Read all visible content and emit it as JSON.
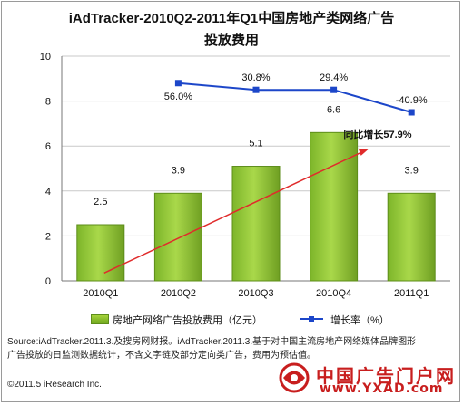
{
  "title_line1": "iAdTracker-2010Q2-2011年Q1中国房地产类网络广告",
  "title_line2": "投放费用",
  "chart_data": {
    "type": "bar",
    "categories": [
      "2010Q1",
      "2010Q2",
      "2010Q3",
      "2010Q4",
      "2011Q1"
    ],
    "ylim": [
      0,
      10
    ],
    "yticks": [
      0,
      2,
      4,
      6,
      8,
      10
    ],
    "grid": true,
    "series": [
      {
        "name": "房地产网络广告投放费用（亿元）",
        "type": "bar",
        "values": [
          2.5,
          3.9,
          5.1,
          6.6,
          3.9
        ],
        "labels": [
          "2.5",
          "3.9",
          "5.1",
          "6.6",
          "3.9"
        ]
      },
      {
        "name": "增长率（%）",
        "type": "line",
        "values": [
          null,
          8.8,
          8.5,
          8.5,
          7.5
        ],
        "labels": [
          "",
          "56.0%",
          "30.8%",
          "29.4%",
          "-40.9%"
        ]
      }
    ],
    "annotation": "同比增长57.9%",
    "legend_position": "bottom",
    "colors": {
      "bar": "#8cc634",
      "bar_edge": "#5d8d1a",
      "line": "#1c46c9",
      "arrow": "#e02b2b"
    }
  },
  "source_line1": "Source:iAdTracker.2011.3.及搜房网财报。iAdTracker.2011.3.基于对中国主流房地产网络媒体品牌图形",
  "source_line2": "广告投放的日监测数据统计，不含文字链及部分定向类广告，费用为预估值。",
  "copyright": "©2011.5 iResearch Inc.",
  "logo": {
    "name": "中国广告门户网",
    "url": "www.YXAD.com"
  }
}
